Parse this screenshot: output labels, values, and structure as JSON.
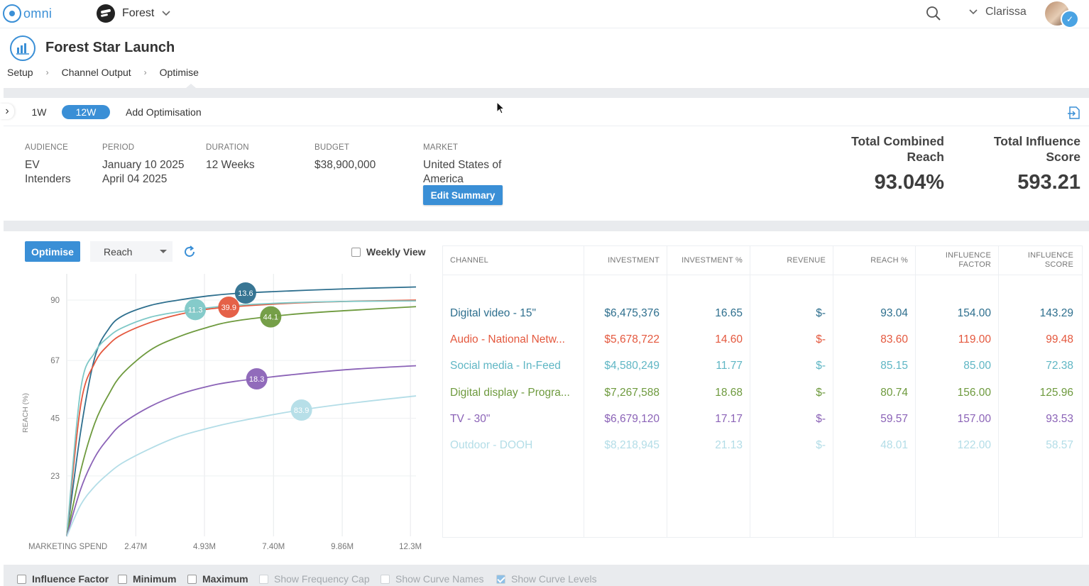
{
  "app": {
    "logo_text": "omni",
    "brand_name": "Forest",
    "user_name": "Clarissa"
  },
  "project": {
    "title": "Forest Star Launch"
  },
  "breadcrumbs": [
    "Setup",
    "Channel Output",
    "Optimise"
  ],
  "tabs": {
    "t1": "1W",
    "t2": "12W",
    "add": "Add Optimisation"
  },
  "summary": {
    "audience_label": "AUDIENCE",
    "audience_value": "EV Intenders",
    "period_label": "PERIOD",
    "period_start": "January 10 2025",
    "period_end": "April 04 2025",
    "duration_label": "DURATION",
    "duration_value": "12 Weeks",
    "budget_label": "BUDGET",
    "budget_value": "$38,900,000",
    "market_label": "MARKET",
    "market_value": "United States of America",
    "edit_button": "Edit Summary"
  },
  "kpis": {
    "reach_label": "Total Combined Reach",
    "reach_value": "93.04%",
    "influence_label": "Total Influence Score",
    "influence_value": "593.21"
  },
  "controls": {
    "optimise_button": "Optimise",
    "metric_select": "Reach",
    "weekly_view": "Weekly View"
  },
  "chart_data": {
    "type": "line",
    "xlabel": "MARKETING SPEND",
    "ylabel": "REACH (%)",
    "x_ticks": [
      "2.47M",
      "4.93M",
      "7.40M",
      "9.86M",
      "12.3M"
    ],
    "y_ticks": [
      "23",
      "45",
      "67",
      "90"
    ],
    "series": [
      {
        "color": "#2e6f8e",
        "values": [
          [
            0,
            0
          ],
          [
            0.5,
            40
          ],
          [
            1,
            68
          ],
          [
            1.5,
            79
          ],
          [
            2,
            84
          ],
          [
            3,
            88
          ],
          [
            4,
            90
          ],
          [
            5,
            91.5
          ],
          [
            6,
            92.5
          ],
          [
            8,
            93.5
          ],
          [
            10,
            94.3
          ],
          [
            12.5,
            95
          ]
        ],
        "marker": {
          "x": 6.4,
          "label": "13.6"
        }
      },
      {
        "color": "#e4583e",
        "values": [
          [
            0,
            0
          ],
          [
            0.5,
            50
          ],
          [
            1,
            66
          ],
          [
            1.5,
            73
          ],
          [
            2,
            77
          ],
          [
            3,
            81.5
          ],
          [
            4,
            84.5
          ],
          [
            5,
            86.5
          ],
          [
            6,
            87.5
          ],
          [
            8,
            88.8
          ],
          [
            10,
            89.5
          ],
          [
            12.5,
            90
          ]
        ],
        "marker": {
          "x": 5.8,
          "label": "39.9"
        }
      },
      {
        "color": "#7ec8c7",
        "values": [
          [
            0,
            0
          ],
          [
            0.5,
            56
          ],
          [
            1,
            70
          ],
          [
            1.5,
            76
          ],
          [
            2,
            79.5
          ],
          [
            3,
            83.5
          ],
          [
            4,
            85.5
          ],
          [
            5,
            87
          ],
          [
            6,
            88
          ],
          [
            8,
            89
          ],
          [
            10,
            89.5
          ],
          [
            12.5,
            89.7
          ]
        ],
        "marker": {
          "x": 4.6,
          "label": "11.3"
        }
      },
      {
        "color": "#6e9a3e",
        "values": [
          [
            0,
            0
          ],
          [
            0.5,
            25
          ],
          [
            1,
            43
          ],
          [
            1.5,
            54
          ],
          [
            2,
            62
          ],
          [
            3,
            71
          ],
          [
            4,
            76
          ],
          [
            5,
            79.5
          ],
          [
            6,
            82
          ],
          [
            8,
            84.5
          ],
          [
            10,
            86
          ],
          [
            12.5,
            87.5
          ]
        ],
        "marker": {
          "x": 7.3,
          "label": "44.1"
        }
      },
      {
        "color": "#8b63b7",
        "values": [
          [
            0,
            0
          ],
          [
            0.5,
            18
          ],
          [
            1,
            30
          ],
          [
            1.5,
            37.5
          ],
          [
            2,
            43
          ],
          [
            3,
            49.5
          ],
          [
            4,
            54
          ],
          [
            5,
            57
          ],
          [
            6,
            59
          ],
          [
            8,
            61.5
          ],
          [
            10,
            63.5
          ],
          [
            12.5,
            65
          ]
        ],
        "marker": {
          "x": 6.8,
          "label": "18.3"
        }
      },
      {
        "color": "#b3dde7",
        "values": [
          [
            0,
            0
          ],
          [
            0.5,
            12
          ],
          [
            1,
            19
          ],
          [
            1.5,
            24
          ],
          [
            2,
            28
          ],
          [
            3,
            33.5
          ],
          [
            4,
            38
          ],
          [
            5,
            41
          ],
          [
            6,
            43.5
          ],
          [
            8,
            47.5
          ],
          [
            10,
            50.5
          ],
          [
            12.5,
            53.5
          ]
        ],
        "marker": {
          "x": 8.4,
          "label": "83.9"
        }
      }
    ],
    "xlim": [
      0,
      12.5
    ],
    "ylim": [
      0,
      100
    ],
    "grid": true
  },
  "table": {
    "headers": [
      "CHANNEL",
      "INVESTMENT",
      "INVESTMENT %",
      "REVENUE",
      "REACH %",
      "INFLUENCE FACTOR",
      "INFLUENCE SCORE"
    ],
    "rows": [
      {
        "color": "#2e6f8e",
        "cells": [
          "Digital video -  15\"",
          "$6,475,376",
          "16.65",
          "$-",
          "93.04",
          "154.00",
          "143.29"
        ]
      },
      {
        "color": "#e4583e",
        "cells": [
          "Audio - National Netw...",
          "$5,678,722",
          "14.60",
          "$-",
          "83.60",
          "119.00",
          "99.48"
        ]
      },
      {
        "color": "#5fb6c4",
        "cells": [
          "Social media - In-Feed",
          "$4,580,249",
          "11.77",
          "$-",
          "85.15",
          "85.00",
          "72.38"
        ]
      },
      {
        "color": "#6e9a3e",
        "cells": [
          "Digital display - Progra...",
          "$7,267,588",
          "18.68",
          "$-",
          "80.74",
          "156.00",
          "125.96"
        ]
      },
      {
        "color": "#8b63b7",
        "cells": [
          "TV - 30\"",
          "$6,679,120",
          "17.17",
          "$-",
          "59.57",
          "157.00",
          "93.53"
        ]
      },
      {
        "color": "#b3dde7",
        "cells": [
          "Outdoor - DOOH",
          "$8,218,945",
          "21.13",
          "$-",
          "48.01",
          "122.00",
          "58.57"
        ]
      }
    ]
  },
  "footer_options": [
    {
      "label": "Influence Factor",
      "checked": false,
      "dim": false
    },
    {
      "label": "Minimum",
      "checked": false,
      "dim": false
    },
    {
      "label": "Maximum",
      "checked": false,
      "dim": false
    },
    {
      "label": "Show Frequency Cap",
      "checked": false,
      "dim": true
    },
    {
      "label": "Show Curve Names",
      "checked": false,
      "dim": true
    },
    {
      "label": "Show Curve Levels",
      "checked": true,
      "dim": true
    }
  ]
}
